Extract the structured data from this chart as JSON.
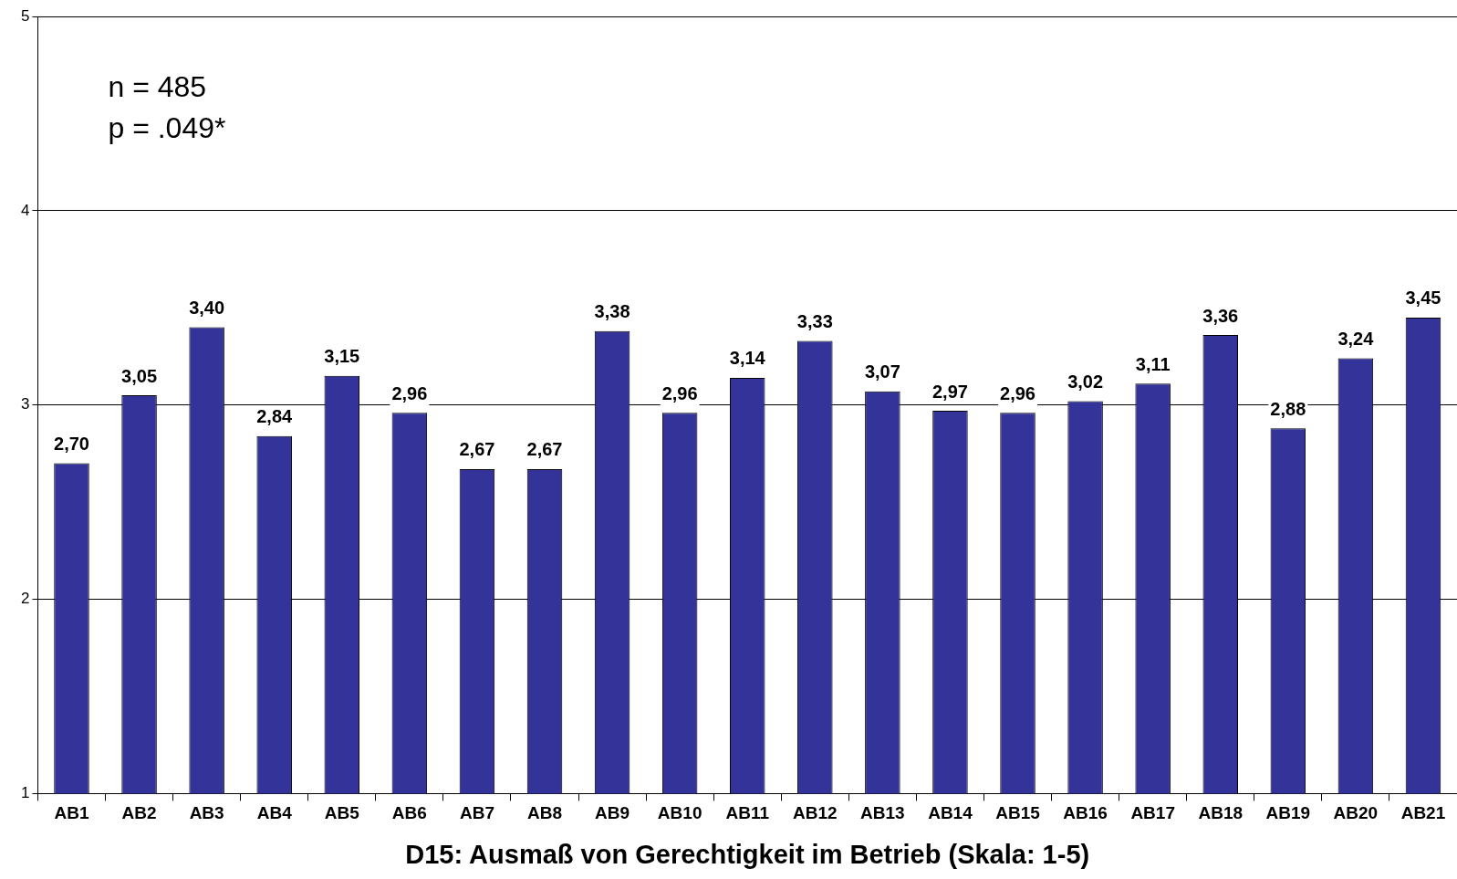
{
  "chart_data": {
    "type": "bar",
    "xlabel": "D15: Ausmaß von Gerechtigkeit im Betrieb (Skala: 1-5)",
    "annotations": [
      "n = 485",
      "p = .049*"
    ],
    "categories": [
      "AB1",
      "AB2",
      "AB3",
      "AB4",
      "AB5",
      "AB6",
      "AB7",
      "AB8",
      "AB9",
      "AB10",
      "AB11",
      "AB12",
      "AB13",
      "AB14",
      "AB15",
      "AB16",
      "AB17",
      "AB18",
      "AB19",
      "AB20",
      "AB21"
    ],
    "values": [
      2.7,
      3.05,
      3.4,
      2.84,
      3.15,
      2.96,
      2.67,
      2.67,
      3.38,
      2.96,
      3.14,
      3.33,
      3.07,
      2.97,
      2.96,
      3.02,
      3.11,
      3.36,
      2.88,
      3.24,
      3.45
    ],
    "value_labels": [
      "2,70",
      "3,05",
      "3,40",
      "2,84",
      "3,15",
      "2,96",
      "2,67",
      "2,67",
      "3,38",
      "2,96",
      "3,14",
      "3,33",
      "3,07",
      "2,97",
      "2,96",
      "3,02",
      "3,11",
      "3,36",
      "2,88",
      "3,24",
      "3,45"
    ],
    "color": "#333399",
    "ylim": [
      1,
      5
    ],
    "yticks": [
      1,
      2,
      3,
      4,
      5
    ],
    "grid": "y",
    "legend": false
  }
}
